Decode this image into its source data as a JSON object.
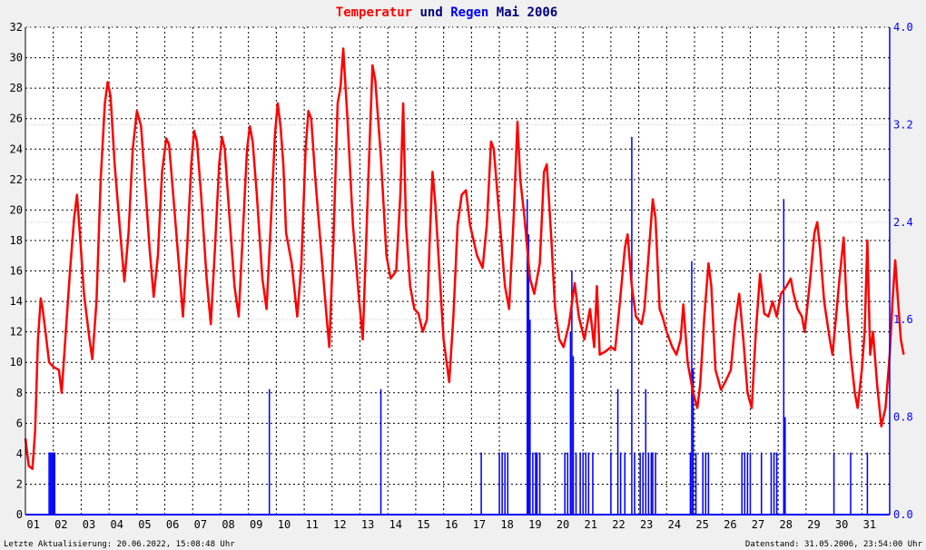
{
  "chart_data": {
    "type": "line",
    "title": {
      "part1": "Temperatur",
      "part2": " und ",
      "part3": "Regen",
      "part4": " Mai 2006"
    },
    "xlabel": "",
    "ylabel": "",
    "x_ticks": [
      "01",
      "02",
      "03",
      "04",
      "05",
      "06",
      "07",
      "08",
      "09",
      "10",
      "11",
      "12",
      "13",
      "14",
      "15",
      "16",
      "17",
      "18",
      "19",
      "20",
      "21",
      "22",
      "23",
      "24",
      "25",
      "26",
      "27",
      "28",
      "29",
      "30",
      "31"
    ],
    "x_range": [
      0,
      31
    ],
    "ylim_left": [
      0,
      32
    ],
    "ylim_right": [
      0,
      4.0
    ],
    "left_ticks": [
      "0",
      "2",
      "4",
      "6",
      "8",
      "10",
      "12",
      "14",
      "16",
      "18",
      "20",
      "22",
      "24",
      "26",
      "28",
      "30",
      "32"
    ],
    "right_ticks": [
      "0.0",
      "0.8",
      "1.6",
      "2.4",
      "3.2",
      "4.0"
    ],
    "grid": true,
    "series": [
      {
        "name": "Temperatur",
        "axis": "left",
        "color": "#ff0000",
        "points": [
          [
            0.0,
            5.0
          ],
          [
            0.12,
            3.2
          ],
          [
            0.25,
            3.0
          ],
          [
            0.35,
            5.5
          ],
          [
            0.45,
            11.5
          ],
          [
            0.55,
            14.2
          ],
          [
            0.62,
            13.5
          ],
          [
            0.72,
            12.0
          ],
          [
            0.85,
            10.0
          ],
          [
            1.0,
            9.7
          ],
          [
            1.2,
            9.5
          ],
          [
            1.3,
            8.0
          ],
          [
            1.45,
            12.0
          ],
          [
            1.6,
            16.0
          ],
          [
            1.75,
            19.5
          ],
          [
            1.85,
            21.0
          ],
          [
            1.95,
            18.5
          ],
          [
            2.1,
            14.5
          ],
          [
            2.3,
            11.5
          ],
          [
            2.4,
            10.2
          ],
          [
            2.55,
            14.0
          ],
          [
            2.7,
            22.0
          ],
          [
            2.85,
            27.0
          ],
          [
            2.95,
            28.4
          ],
          [
            3.05,
            27.5
          ],
          [
            3.2,
            23.0
          ],
          [
            3.4,
            18.5
          ],
          [
            3.55,
            15.3
          ],
          [
            3.7,
            18.5
          ],
          [
            3.85,
            24.0
          ],
          [
            4.0,
            26.5
          ],
          [
            4.15,
            25.5
          ],
          [
            4.3,
            21.5
          ],
          [
            4.45,
            17.5
          ],
          [
            4.6,
            14.3
          ],
          [
            4.75,
            17.0
          ],
          [
            4.9,
            22.5
          ],
          [
            5.05,
            24.7
          ],
          [
            5.15,
            24.3
          ],
          [
            5.3,
            21.0
          ],
          [
            5.5,
            16.5
          ],
          [
            5.65,
            13.0
          ],
          [
            5.8,
            17.5
          ],
          [
            5.95,
            23.0
          ],
          [
            6.05,
            25.2
          ],
          [
            6.15,
            24.5
          ],
          [
            6.3,
            21.0
          ],
          [
            6.5,
            15.5
          ],
          [
            6.65,
            12.5
          ],
          [
            6.8,
            17.5
          ],
          [
            6.95,
            23.0
          ],
          [
            7.05,
            24.8
          ],
          [
            7.15,
            24.0
          ],
          [
            7.3,
            20.0
          ],
          [
            7.5,
            15.0
          ],
          [
            7.65,
            13.0
          ],
          [
            7.8,
            18.5
          ],
          [
            7.95,
            24.0
          ],
          [
            8.05,
            25.5
          ],
          [
            8.15,
            24.5
          ],
          [
            8.3,
            21.0
          ],
          [
            8.5,
            15.5
          ],
          [
            8.65,
            13.5
          ],
          [
            8.8,
            19.0
          ],
          [
            8.95,
            25.0
          ],
          [
            9.05,
            27.0
          ],
          [
            9.15,
            25.5
          ],
          [
            9.25,
            23.0
          ],
          [
            9.35,
            18.5
          ],
          [
            9.55,
            16.5
          ],
          [
            9.75,
            13.0
          ],
          [
            9.9,
            16.5
          ],
          [
            10.05,
            24.0
          ],
          [
            10.15,
            26.5
          ],
          [
            10.25,
            26.0
          ],
          [
            10.4,
            22.0
          ],
          [
            10.6,
            17.5
          ],
          [
            10.8,
            13.0
          ],
          [
            10.9,
            11.0
          ],
          [
            11.05,
            18.0
          ],
          [
            11.2,
            27.0
          ],
          [
            11.3,
            28.0
          ],
          [
            11.4,
            30.6
          ],
          [
            11.55,
            26.0
          ],
          [
            11.75,
            19.0
          ],
          [
            11.95,
            14.5
          ],
          [
            12.1,
            11.5
          ],
          [
            12.3,
            22.0
          ],
          [
            12.45,
            29.5
          ],
          [
            12.55,
            28.5
          ],
          [
            12.75,
            23.5
          ],
          [
            12.95,
            17.0
          ],
          [
            13.1,
            15.5
          ],
          [
            13.3,
            16.0
          ],
          [
            13.45,
            21.0
          ],
          [
            13.55,
            27.0
          ],
          [
            13.65,
            19.0
          ],
          [
            13.8,
            15.0
          ],
          [
            13.95,
            13.5
          ],
          [
            14.1,
            13.2
          ],
          [
            14.25,
            12.0
          ],
          [
            14.4,
            12.8
          ],
          [
            14.5,
            18.0
          ],
          [
            14.6,
            22.5
          ],
          [
            14.7,
            20.5
          ],
          [
            14.85,
            16.0
          ],
          [
            15.0,
            11.5
          ],
          [
            15.2,
            8.7
          ],
          [
            15.35,
            13.0
          ],
          [
            15.5,
            19.0
          ],
          [
            15.65,
            21.0
          ],
          [
            15.8,
            21.3
          ],
          [
            15.95,
            19.0
          ],
          [
            16.2,
            17.0
          ],
          [
            16.4,
            16.2
          ],
          [
            16.55,
            19.0
          ],
          [
            16.7,
            24.5
          ],
          [
            16.8,
            24.0
          ],
          [
            17.0,
            19.5
          ],
          [
            17.2,
            15.0
          ],
          [
            17.35,
            13.5
          ],
          [
            17.5,
            19.0
          ],
          [
            17.65,
            25.8
          ],
          [
            17.75,
            22.0
          ],
          [
            17.9,
            19.5
          ],
          [
            18.1,
            15.5
          ],
          [
            18.25,
            14.5
          ],
          [
            18.45,
            16.5
          ],
          [
            18.6,
            22.5
          ],
          [
            18.7,
            23.0
          ],
          [
            18.85,
            18.5
          ],
          [
            19.0,
            13.5
          ],
          [
            19.15,
            11.5
          ],
          [
            19.3,
            11.0
          ],
          [
            19.5,
            12.5
          ],
          [
            19.7,
            15.2
          ],
          [
            19.85,
            13.0
          ],
          [
            20.05,
            11.5
          ],
          [
            20.25,
            13.5
          ],
          [
            20.4,
            11.0
          ],
          [
            20.5,
            15.0
          ],
          [
            20.6,
            10.5
          ],
          [
            20.8,
            10.7
          ],
          [
            21.0,
            11.0
          ],
          [
            21.15,
            10.8
          ],
          [
            21.3,
            13.5
          ],
          [
            21.5,
            17.5
          ],
          [
            21.6,
            18.4
          ],
          [
            21.75,
            15.0
          ],
          [
            21.9,
            13.0
          ],
          [
            22.1,
            12.5
          ],
          [
            22.2,
            13.5
          ],
          [
            22.35,
            17.0
          ],
          [
            22.5,
            20.7
          ],
          [
            22.6,
            19.5
          ],
          [
            22.75,
            13.5
          ],
          [
            22.85,
            13.0
          ],
          [
            23.0,
            12.0
          ],
          [
            23.2,
            11.0
          ],
          [
            23.35,
            10.5
          ],
          [
            23.5,
            11.5
          ],
          [
            23.6,
            13.8
          ],
          [
            23.75,
            10.0
          ],
          [
            23.95,
            8.0
          ],
          [
            24.1,
            7.0
          ],
          [
            24.2,
            8.5
          ],
          [
            24.35,
            13.0
          ],
          [
            24.5,
            16.5
          ],
          [
            24.6,
            15.0
          ],
          [
            24.75,
            9.5
          ],
          [
            24.95,
            8.2
          ],
          [
            25.1,
            8.7
          ],
          [
            25.3,
            9.5
          ],
          [
            25.45,
            12.5
          ],
          [
            25.6,
            14.5
          ],
          [
            25.75,
            11.5
          ],
          [
            25.9,
            8.0
          ],
          [
            26.05,
            7.0
          ],
          [
            26.2,
            12.0
          ],
          [
            26.35,
            15.8
          ],
          [
            26.5,
            13.2
          ],
          [
            26.65,
            13.0
          ],
          [
            26.8,
            14.0
          ],
          [
            26.95,
            13.0
          ],
          [
            27.1,
            14.5
          ],
          [
            27.3,
            15.0
          ],
          [
            27.45,
            15.5
          ],
          [
            27.55,
            14.5
          ],
          [
            27.7,
            13.5
          ],
          [
            27.85,
            13.0
          ],
          [
            27.95,
            12.0
          ],
          [
            28.15,
            15.5
          ],
          [
            28.3,
            18.5
          ],
          [
            28.4,
            19.2
          ],
          [
            28.5,
            17.5
          ],
          [
            28.65,
            14.0
          ],
          [
            28.85,
            11.5
          ],
          [
            28.95,
            10.5
          ],
          [
            29.1,
            13.5
          ],
          [
            29.2,
            15.5
          ],
          [
            29.35,
            18.2
          ],
          [
            29.45,
            14.0
          ],
          [
            29.6,
            10.5
          ],
          [
            29.75,
            8.0
          ],
          [
            29.85,
            7.0
          ],
          [
            30.0,
            9.5
          ],
          [
            30.1,
            12.0
          ],
          [
            30.2,
            18.0
          ],
          [
            30.3,
            10.5
          ],
          [
            30.4,
            12.0
          ],
          [
            30.55,
            8.5
          ],
          [
            30.7,
            5.8
          ],
          [
            30.85,
            7.0
          ],
          [
            31.0,
            10.5
          ],
          [
            31.1,
            14.0
          ],
          [
            31.2,
            16.7
          ],
          [
            31.3,
            14.0
          ],
          [
            31.4,
            11.5
          ],
          [
            31.5,
            10.5
          ]
        ]
      },
      {
        "name": "Regen",
        "axis": "right",
        "color": "#0000ff",
        "bars": [
          [
            0.85,
            0.51
          ],
          [
            0.9,
            0.51
          ],
          [
            0.95,
            0.51
          ],
          [
            1.0,
            0.51
          ],
          [
            1.05,
            0.51
          ],
          [
            8.75,
            1.03
          ],
          [
            12.75,
            1.03
          ],
          [
            16.35,
            0.51
          ],
          [
            17.0,
            0.51
          ],
          [
            17.1,
            0.51
          ],
          [
            17.2,
            0.51
          ],
          [
            17.3,
            0.51
          ],
          [
            18.0,
            2.59
          ],
          [
            18.05,
            2.3
          ],
          [
            18.1,
            1.6
          ],
          [
            18.2,
            0.51
          ],
          [
            18.3,
            0.51
          ],
          [
            18.35,
            0.51
          ],
          [
            18.45,
            0.51
          ],
          [
            19.35,
            0.51
          ],
          [
            19.45,
            0.51
          ],
          [
            19.55,
            1.5
          ],
          [
            19.6,
            2.0
          ],
          [
            19.65,
            1.3
          ],
          [
            19.75,
            0.51
          ],
          [
            19.9,
            0.51
          ],
          [
            20.0,
            0.51
          ],
          [
            20.1,
            0.51
          ],
          [
            20.2,
            0.51
          ],
          [
            20.35,
            0.51
          ],
          [
            21.0,
            0.51
          ],
          [
            21.25,
            1.03
          ],
          [
            21.35,
            0.51
          ],
          [
            21.5,
            0.51
          ],
          [
            21.75,
            3.1
          ],
          [
            21.85,
            0.51
          ],
          [
            22.05,
            0.51
          ],
          [
            22.15,
            0.51
          ],
          [
            22.25,
            1.03
          ],
          [
            22.35,
            0.51
          ],
          [
            22.45,
            0.51
          ],
          [
            22.5,
            0.51
          ],
          [
            22.6,
            0.51
          ],
          [
            23.85,
            0.51
          ],
          [
            23.9,
            2.08
          ],
          [
            23.95,
            1.2
          ],
          [
            24.05,
            0.51
          ],
          [
            24.3,
            0.51
          ],
          [
            24.4,
            0.51
          ],
          [
            24.5,
            0.51
          ],
          [
            25.7,
            0.51
          ],
          [
            25.8,
            0.51
          ],
          [
            25.9,
            0.51
          ],
          [
            26.0,
            0.51
          ],
          [
            26.4,
            0.51
          ],
          [
            26.75,
            0.51
          ],
          [
            26.85,
            0.51
          ],
          [
            26.95,
            0.51
          ],
          [
            27.2,
            2.59
          ],
          [
            27.25,
            0.8
          ],
          [
            29.0,
            0.51
          ],
          [
            29.6,
            0.51
          ],
          [
            30.2,
            0.51
          ]
        ]
      }
    ]
  },
  "footer": {
    "left": "Letzte Aktualisierung: 20.06.2022, 15:08:48 Uhr",
    "right": "Datenstand: 31.05.2006, 23:54:00 Uhr"
  },
  "colors": {
    "temp": "#ff0000",
    "rain": "#0000ff",
    "title_text": "#000080",
    "plot_bg": "#ffffff",
    "page_bg": "#f0f0f0"
  }
}
